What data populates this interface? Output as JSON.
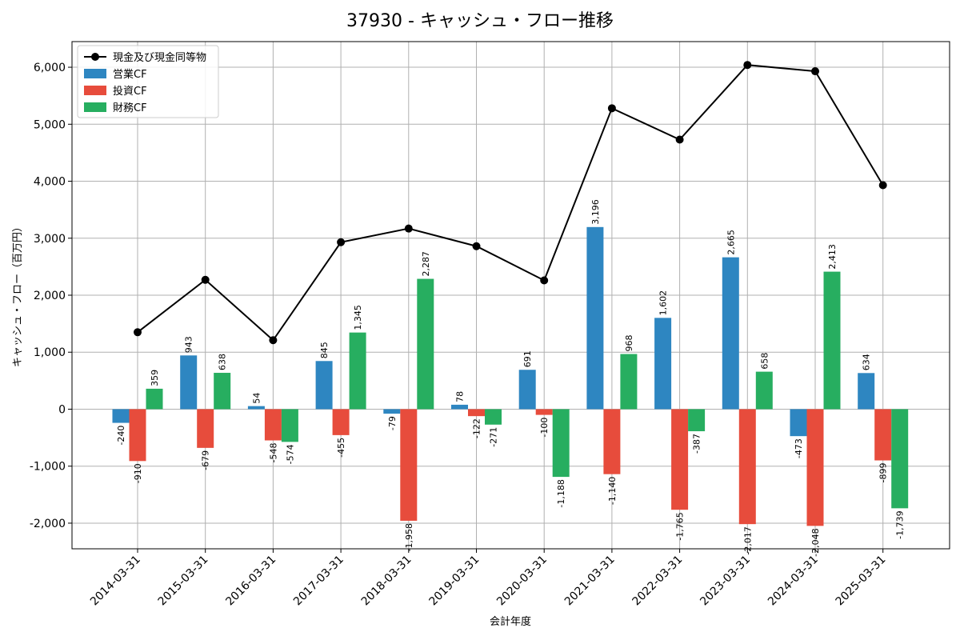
{
  "chart_data": {
    "type": "bar",
    "title": "37930 - キャッシュ・フロー推移",
    "xlabel": "会計年度",
    "ylabel": "キャッシュ・フロー（百万円）",
    "categories": [
      "2014-03-31",
      "2015-03-31",
      "2016-03-31",
      "2017-03-31",
      "2018-03-31",
      "2019-03-31",
      "2020-03-31",
      "2021-03-31",
      "2022-03-31",
      "2023-03-31",
      "2024-03-31",
      "2025-03-31"
    ],
    "ylim": [
      -2450,
      6450
    ],
    "yticks": [
      -2000,
      -1000,
      0,
      1000,
      2000,
      3000,
      4000,
      5000,
      6000
    ],
    "ytick_labels": [
      "-2,000",
      "-1,000",
      "0",
      "1,000",
      "2,000",
      "3,000",
      "4,000",
      "5,000",
      "6,000"
    ],
    "grid": true,
    "legend_position": "top-left",
    "series": [
      {
        "name": "営業CF",
        "kind": "bar",
        "color": "#2e86c1",
        "values": [
          -240,
          943,
          54,
          845,
          -79,
          78,
          691,
          3196,
          1602,
          2665,
          -473,
          634
        ],
        "labels": [
          "-240",
          "943",
          "54",
          "845",
          "-79",
          "78",
          "691",
          "3,196",
          "1,602",
          "2,665",
          "-473",
          "634"
        ]
      },
      {
        "name": "投資CF",
        "kind": "bar",
        "color": "#e74c3c",
        "values": [
          -910,
          -679,
          -548,
          -455,
          -1958,
          -122,
          -100,
          -1140,
          -1765,
          -2017,
          -2048,
          -899
        ],
        "labels": [
          "-910",
          "-679",
          "-548",
          "-455",
          "-1,958",
          "-122",
          "-100",
          "-1,140",
          "-1,765",
          "-2,017",
          "-2,048",
          "-899"
        ]
      },
      {
        "name": "財務CF",
        "kind": "bar",
        "color": "#27ae60",
        "values": [
          359,
          638,
          -574,
          1345,
          2287,
          -271,
          -1188,
          968,
          -387,
          658,
          2413,
          -1739
        ],
        "labels": [
          "359",
          "638",
          "-574",
          "1,345",
          "2,287",
          "-271",
          "-1,188",
          "968",
          "-387",
          "658",
          "2,413",
          "-1,739"
        ]
      }
    ],
    "line_series": {
      "name": "現金及び現金同等物",
      "kind": "line",
      "color": "#000000",
      "values": [
        1350,
        2270,
        1210,
        2930,
        3170,
        2860,
        2260,
        5280,
        4730,
        6040,
        5930,
        3930
      ]
    }
  }
}
